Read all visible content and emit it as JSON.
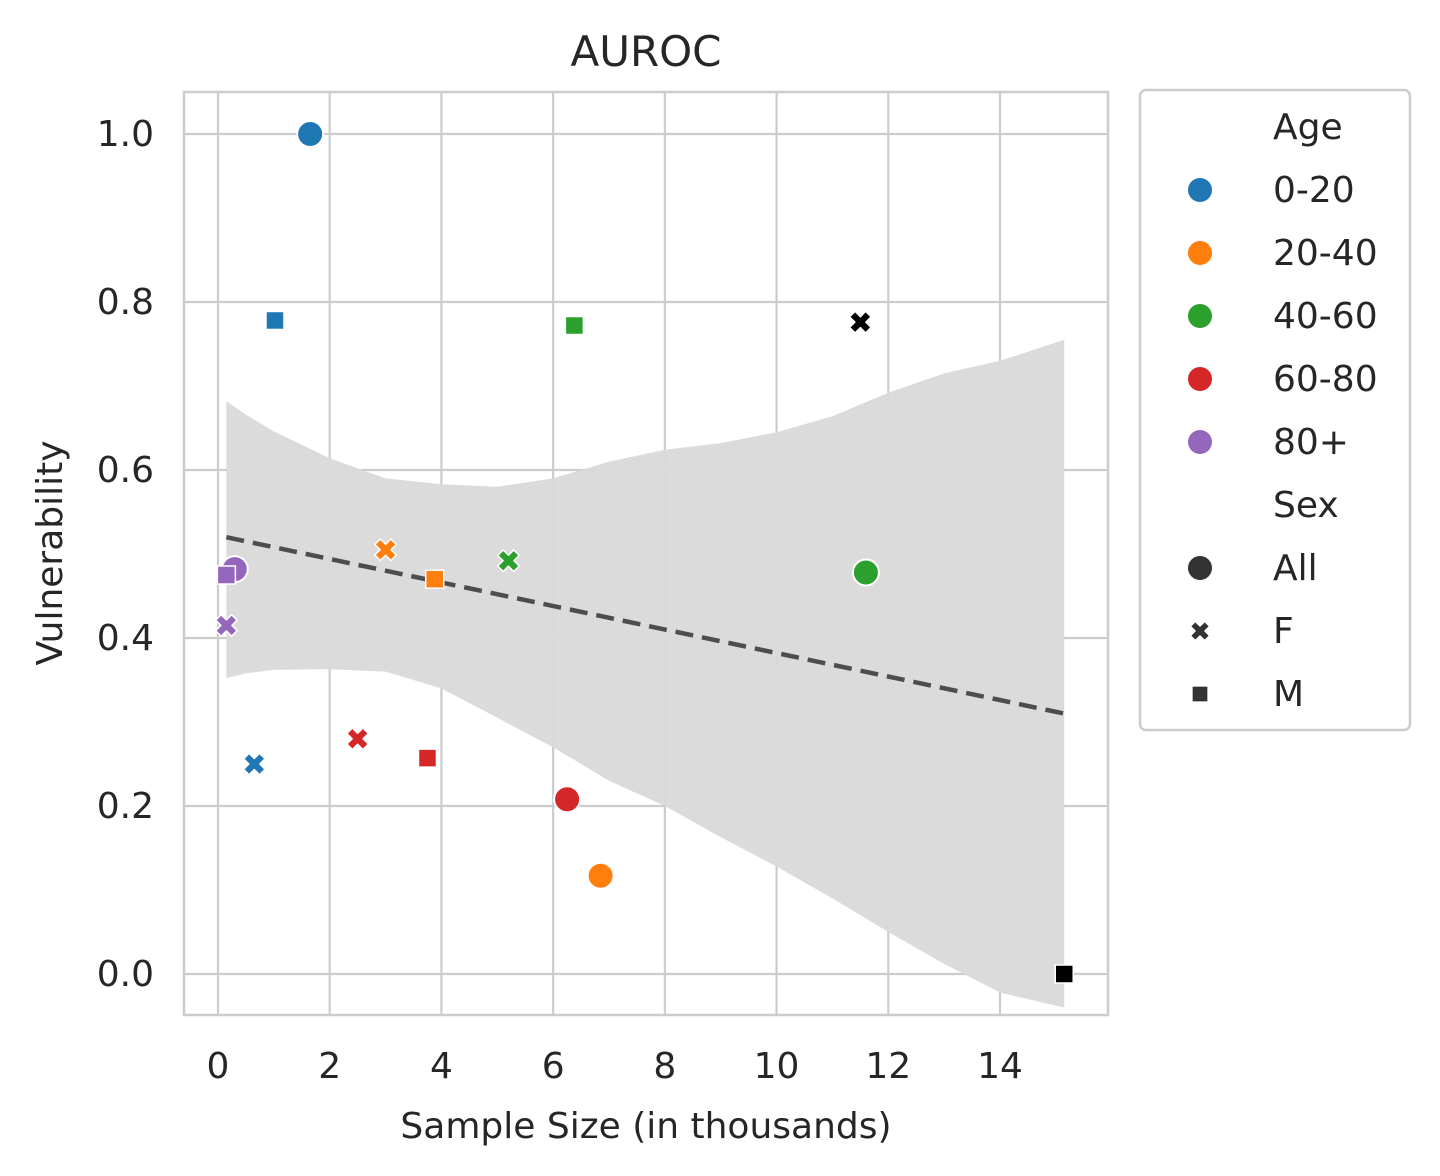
{
  "chart_data": {
    "type": "scatter",
    "title": "AUROC",
    "xlabel": "Sample Size (in thousands)",
    "ylabel": "Vulnerability",
    "xlim": [
      -0.6,
      16.0
    ],
    "ylim": [
      -0.05,
      1.05
    ],
    "xticks": [
      0,
      2,
      4,
      6,
      8,
      10,
      12,
      14
    ],
    "yticks": [
      0.0,
      0.2,
      0.4,
      0.6,
      0.8,
      1.0
    ],
    "xtick_labels": [
      "0",
      "2",
      "4",
      "6",
      "8",
      "10",
      "12",
      "14"
    ],
    "ytick_labels": [
      "0.0",
      "0.2",
      "0.4",
      "0.6",
      "0.8",
      "1.0"
    ],
    "grid": true,
    "legend_position": "outside-right",
    "colors": {
      "0-20": "#1f77b4",
      "20-40": "#ff7f0e",
      "40-60": "#2ca02c",
      "60-80": "#d62728",
      "80+": "#9467bd",
      "other": "#000000",
      "regression": "#4d4d4d",
      "ci_band": "#d9d9d9",
      "grid": "#cccccc"
    },
    "points": [
      {
        "x": 1.65,
        "y": 1.0,
        "age": "0-20",
        "sex": "All"
      },
      {
        "x": 0.65,
        "y": 0.25,
        "age": "0-20",
        "sex": "F"
      },
      {
        "x": 1.02,
        "y": 0.778,
        "age": "0-20",
        "sex": "M"
      },
      {
        "x": 6.85,
        "y": 0.117,
        "age": "20-40",
        "sex": "All"
      },
      {
        "x": 3.0,
        "y": 0.505,
        "age": "20-40",
        "sex": "F"
      },
      {
        "x": 3.88,
        "y": 0.47,
        "age": "20-40",
        "sex": "M"
      },
      {
        "x": 11.6,
        "y": 0.478,
        "age": "40-60",
        "sex": "All"
      },
      {
        "x": 5.2,
        "y": 0.492,
        "age": "40-60",
        "sex": "F"
      },
      {
        "x": 6.38,
        "y": 0.772,
        "age": "40-60",
        "sex": "M"
      },
      {
        "x": 6.25,
        "y": 0.208,
        "age": "60-80",
        "sex": "All"
      },
      {
        "x": 2.5,
        "y": 0.28,
        "age": "60-80",
        "sex": "F"
      },
      {
        "x": 3.75,
        "y": 0.257,
        "age": "60-80",
        "sex": "M"
      },
      {
        "x": 0.3,
        "y": 0.482,
        "age": "80+",
        "sex": "All"
      },
      {
        "x": 0.15,
        "y": 0.415,
        "age": "80+",
        "sex": "F"
      },
      {
        "x": 0.15,
        "y": 0.475,
        "age": "80+",
        "sex": "M"
      },
      {
        "x": 11.5,
        "y": 0.776,
        "age": "",
        "sex": "F"
      },
      {
        "x": 15.15,
        "y": 0.0,
        "age": "",
        "sex": "M"
      }
    ],
    "regression": {
      "x": [
        0.15,
        15.15
      ],
      "y": [
        0.52,
        0.31
      ],
      "style": "dashed"
    },
    "confidence_band": {
      "x": [
        0.15,
        0.5,
        1,
        2,
        3,
        4,
        5,
        6,
        7,
        8,
        9,
        10,
        11,
        12,
        13,
        14,
        15.15
      ],
      "upper": [
        0.682,
        0.666,
        0.646,
        0.614,
        0.59,
        0.583,
        0.58,
        0.59,
        0.61,
        0.624,
        0.632,
        0.645,
        0.664,
        0.692,
        0.715,
        0.73,
        0.755
      ],
      "lower": [
        0.352,
        0.358,
        0.362,
        0.363,
        0.36,
        0.34,
        0.305,
        0.27,
        0.23,
        0.2,
        0.163,
        0.128,
        0.09,
        0.05,
        0.012,
        -0.022,
        -0.04
      ]
    },
    "legend": {
      "age_title": "Age",
      "age_entries": [
        "0-20",
        "20-40",
        "40-60",
        "60-80",
        "80+"
      ],
      "sex_title": "Sex",
      "sex_entries": [
        "All",
        "F",
        "M"
      ]
    }
  }
}
